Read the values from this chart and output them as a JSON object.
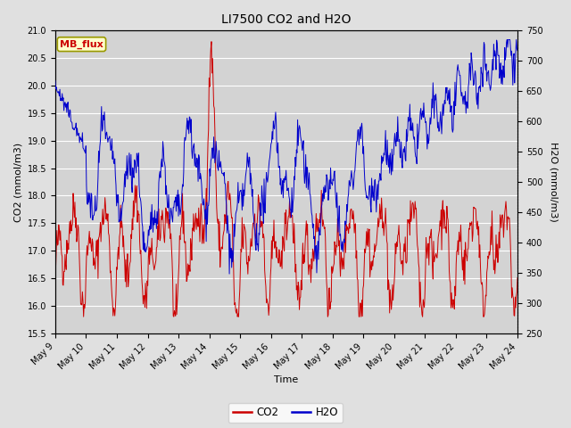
{
  "title": "LI7500 CO2 and H2O",
  "xlabel": "Time",
  "ylabel_left": "CO2 (mmol/m3)",
  "ylabel_right": "H2O (mmol/m3)",
  "co2_color": "#cc0000",
  "h2o_color": "#0000cc",
  "ylim_left": [
    15.5,
    21.0
  ],
  "ylim_right": [
    250,
    750
  ],
  "yticks_left": [
    15.5,
    16.0,
    16.5,
    17.0,
    17.5,
    18.0,
    18.5,
    19.0,
    19.5,
    20.0,
    20.5,
    21.0
  ],
  "yticks_right": [
    250,
    300,
    350,
    400,
    450,
    500,
    550,
    600,
    650,
    700,
    750
  ],
  "bg_color": "#e0e0e0",
  "plot_bg_color": "#d3d3d3",
  "label_box_color": "#ffffcc",
  "label_box_edge": "#999900",
  "label_text": "MB_flux",
  "label_text_color": "#cc0000",
  "n_points": 800,
  "x_start": 9.0,
  "x_end": 24.0,
  "xtick_positions": [
    9,
    10,
    11,
    12,
    13,
    14,
    15,
    16,
    17,
    18,
    19,
    20,
    21,
    22,
    23,
    24
  ],
  "xtick_labels": [
    "May 9",
    "May 10",
    "May 11",
    "May 12",
    "May 13",
    "May 14",
    "May 15",
    "May 16",
    "May 17",
    "May 18",
    "May 19",
    "May 20",
    "May 21",
    "May 22",
    "May 23",
    "May 24"
  ],
  "grid_color": "#bbbbbb",
  "title_fontsize": 10,
  "axis_fontsize": 8,
  "tick_fontsize": 7
}
